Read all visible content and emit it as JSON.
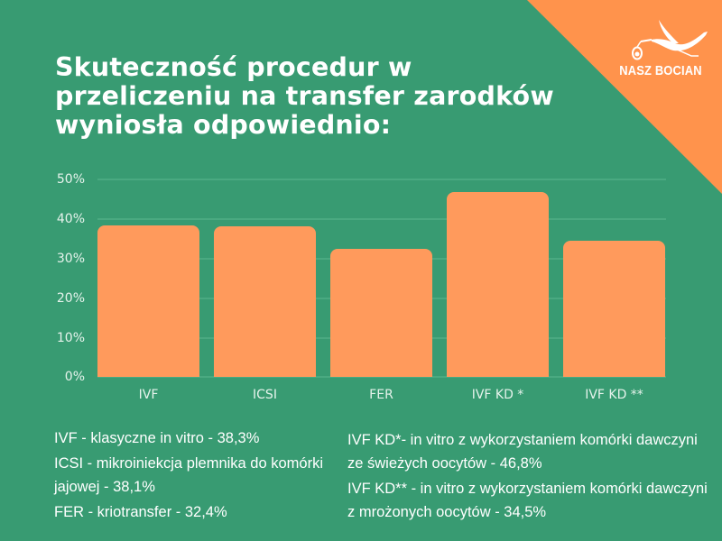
{
  "colors": {
    "background": "#389b72",
    "accent_triangle": "#ff934c",
    "bar": "#ff9a5c",
    "gridline": "#4aa981",
    "text": "#ffffff"
  },
  "logo": {
    "icon": "stork-carrying-bundle-icon",
    "text": "NASZ BOCIAN"
  },
  "title": {
    "line1": "Skuteczność procedur w",
    "line2": "przeliczeniu na transfer zarodków",
    "line3": "wyniosła odpowiednio:"
  },
  "chart_data": {
    "type": "bar",
    "title": "Skuteczność procedur w przeliczeniu na transfer zarodków wyniosła odpowiednio:",
    "categories": [
      "IVF",
      "ICSI",
      "FER",
      "IVF KD *",
      "IVF KD **"
    ],
    "values": [
      38.3,
      38.1,
      32.4,
      46.8,
      34.5
    ],
    "unit": "%",
    "xlabel": "",
    "ylabel": "",
    "ylim": [
      0,
      50
    ],
    "yticks": [
      "0%",
      "10%",
      "20%",
      "30%",
      "40%",
      "50%"
    ],
    "grid": true,
    "legend_position": "bottom",
    "annotations": [
      "IVF - klasyczne in vitro - 38,3%",
      "ICSI - mikroiniekcja plemnika do komórki jajowej - 38,1%",
      "FER - kriotransfer - 32,4%",
      "IVF  KD*- in vitro z wykorzystaniem komórki dawczyni ze świeżych oocytów - 46,8%",
      "IVF KD** - in vitro z wykorzystaniem komórki dawczyni z mrożonych oocytów - 34,5%"
    ]
  },
  "legend": {
    "left": [
      "IVF - klasyczne in vitro - 38,3%",
      "ICSI - mikroiniekcja plemnika do komórki jajowej - 38,1%",
      "FER - kriotransfer - 32,4%"
    ],
    "right": [
      "IVF  KD*- in vitro z wykorzystaniem komórki dawczyni ze świeżych oocytów - 46,8%",
      "IVF KD** - in vitro z wykorzystaniem komórki dawczyni z mrożonych oocytów - 34,5%"
    ]
  }
}
